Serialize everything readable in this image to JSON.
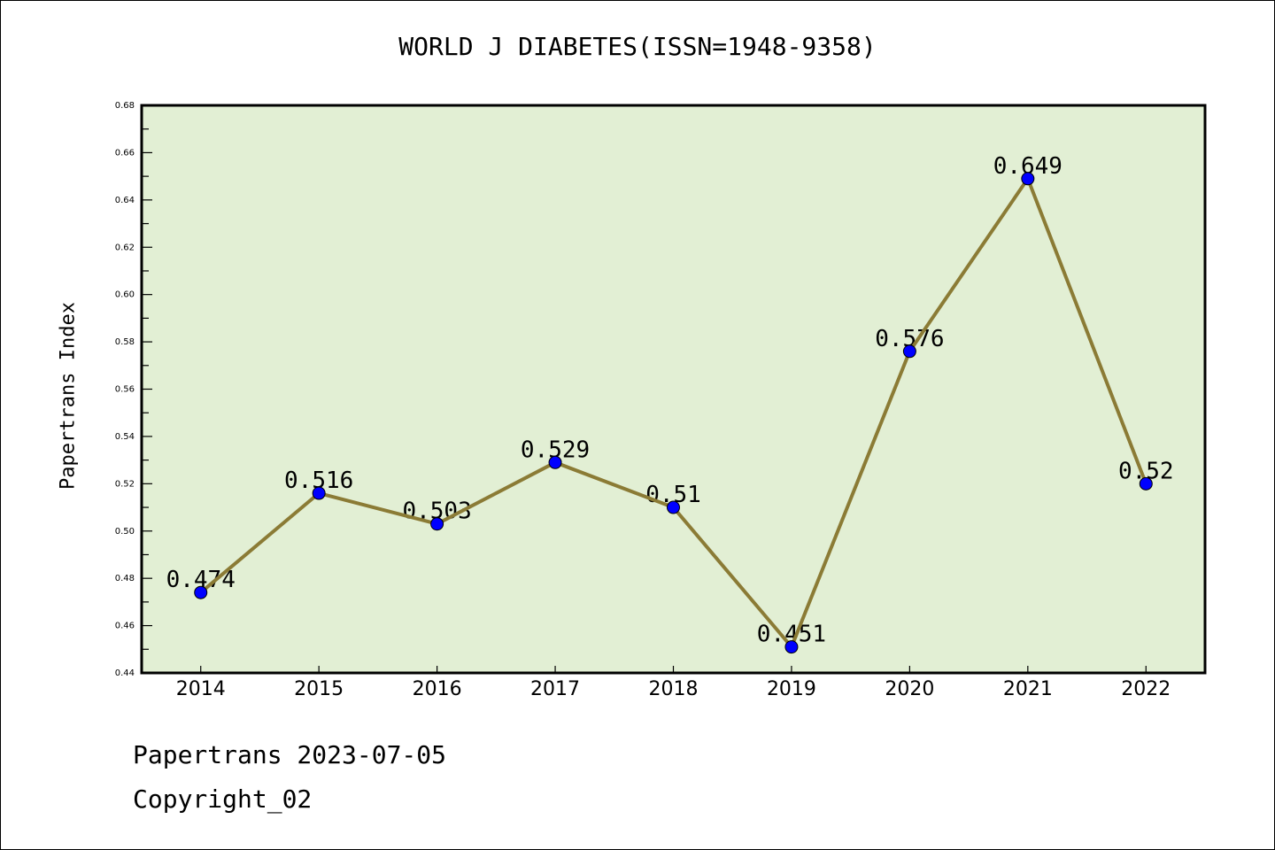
{
  "chart_data": {
    "type": "line",
    "title": "WORLD J DIABETES(ISSN=1948-9358)",
    "xlabel": "",
    "ylabel": "Papertrans Index",
    "categories": [
      "2014",
      "2015",
      "2016",
      "2017",
      "2018",
      "2019",
      "2020",
      "2021",
      "2022"
    ],
    "series": [
      {
        "name": "Papertrans Index",
        "values": [
          0.474,
          0.516,
          0.503,
          0.529,
          0.51,
          0.451,
          0.576,
          0.649,
          0.52
        ],
        "labels": [
          "0.474",
          "0.516",
          "0.503",
          "0.529",
          "0.51",
          "0.451",
          "0.576",
          "0.649",
          "0.52"
        ]
      }
    ],
    "ylim": [
      0.44,
      0.68
    ],
    "yticks": [
      "0.44",
      "0.46",
      "0.48",
      "0.50",
      "0.52",
      "0.54",
      "0.56",
      "0.58",
      "0.60",
      "0.62",
      "0.64",
      "0.66",
      "0.68"
    ],
    "grid": false,
    "colors": {
      "line": "#8B7B35",
      "marker": "#0000FF",
      "plot_bg": "#E2EFD4"
    }
  },
  "footer": {
    "line1": "Papertrans 2023-07-05",
    "line2": "Copyright_02"
  }
}
